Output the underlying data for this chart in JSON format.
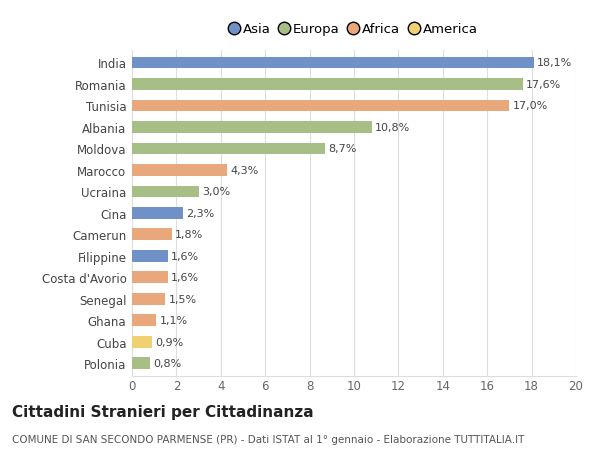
{
  "countries": [
    "India",
    "Romania",
    "Tunisia",
    "Albania",
    "Moldova",
    "Marocco",
    "Ucraina",
    "Cina",
    "Camerun",
    "Filippine",
    "Costa d'Avorio",
    "Senegal",
    "Ghana",
    "Cuba",
    "Polonia"
  ],
  "values": [
    18.1,
    17.6,
    17.0,
    10.8,
    8.7,
    4.3,
    3.0,
    2.3,
    1.8,
    1.6,
    1.6,
    1.5,
    1.1,
    0.9,
    0.8
  ],
  "continents": [
    "Asia",
    "Europa",
    "Africa",
    "Europa",
    "Europa",
    "Africa",
    "Europa",
    "Asia",
    "Africa",
    "Asia",
    "Africa",
    "Africa",
    "Africa",
    "America",
    "Europa"
  ],
  "labels": [
    "18,1%",
    "17,6%",
    "17,0%",
    "10,8%",
    "8,7%",
    "4,3%",
    "3,0%",
    "2,3%",
    "1,8%",
    "1,6%",
    "1,6%",
    "1,5%",
    "1,1%",
    "0,9%",
    "0,8%"
  ],
  "continent_colors": {
    "Asia": "#7090C8",
    "Europa": "#A8BE87",
    "Africa": "#E8A87C",
    "America": "#F0D070"
  },
  "legend_order": [
    "Asia",
    "Europa",
    "Africa",
    "America"
  ],
  "title": "Cittadini Stranieri per Cittadinanza",
  "subtitle": "COMUNE DI SAN SECONDO PARMENSE (PR) - Dati ISTAT al 1° gennaio - Elaborazione TUTTITALIA.IT",
  "xlim": [
    0,
    20
  ],
  "xticks": [
    0,
    2,
    4,
    6,
    8,
    10,
    12,
    14,
    16,
    18,
    20
  ],
  "bg_color": "#ffffff",
  "grid_color": "#dddddd",
  "bar_height": 0.55,
  "title_fontsize": 11,
  "subtitle_fontsize": 7.5,
  "label_fontsize": 8,
  "tick_fontsize": 8.5,
  "legend_fontsize": 9.5
}
